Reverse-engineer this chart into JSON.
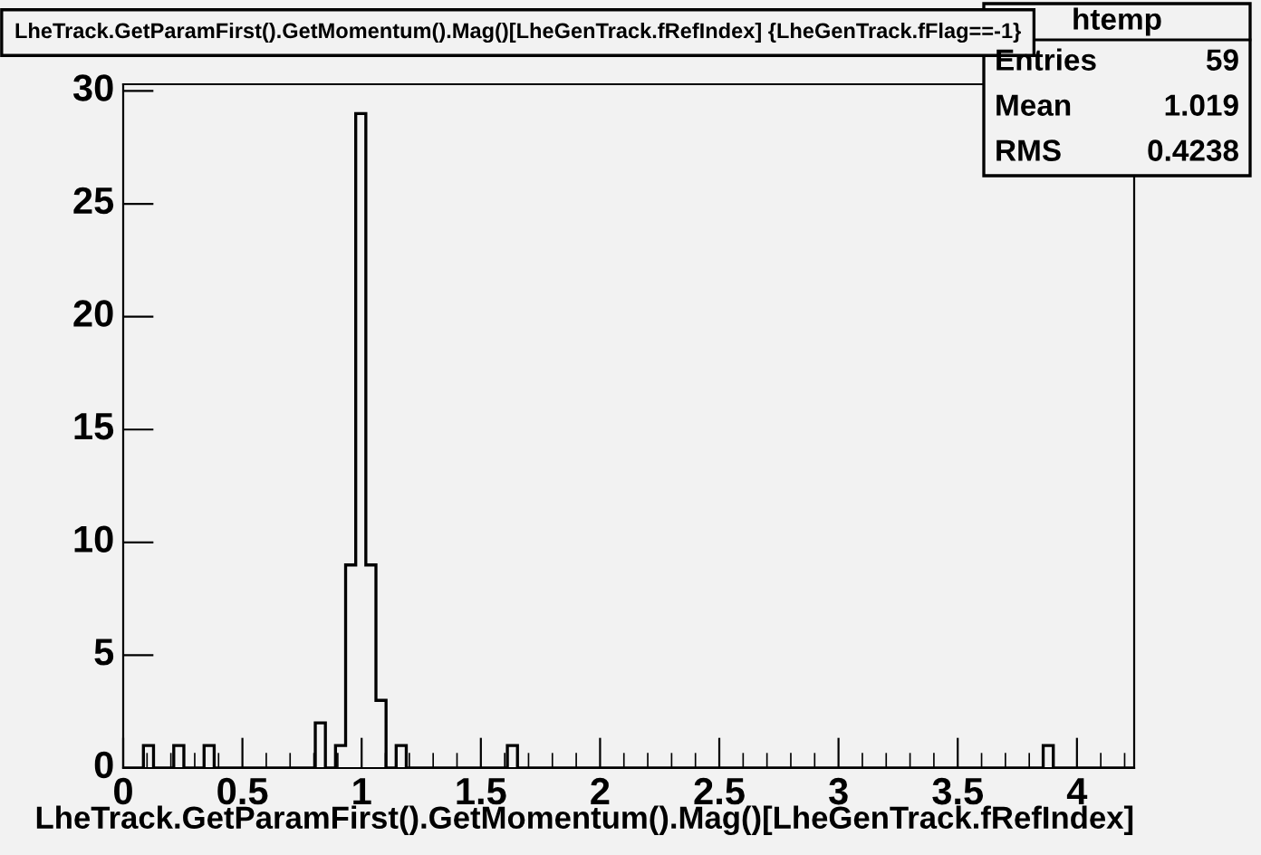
{
  "chart_data": {
    "type": "histogram",
    "title": "LheTrack.GetParamFirst().GetMomentum().Mag()[LheGenTrack.fRefIndex] {LheGenTrack.fFlag==-1}",
    "xlabel": "LheTrack.GetParamFirst().GetMomentum().Mag()[LheGenTrack.fRefIndex]",
    "annotations": [
      "htemp",
      "Entries",
      "59",
      "Mean",
      "1.019",
      "RMS",
      "0.4238"
    ],
    "bins": [
      0,
      0.0424,
      0.0848,
      0.1272,
      0.1696,
      0.212,
      0.2544,
      0.2968,
      0.3392,
      0.3816,
      0.424,
      0.4664,
      0.5088,
      0.5512,
      0.5936,
      0.636,
      0.6784,
      0.7208,
      0.7632,
      0.8056,
      0.848,
      0.8904,
      0.9328,
      0.9752,
      1.0176,
      1.06,
      1.1024,
      1.1448,
      1.1872,
      1.2296,
      1.272,
      1.3144,
      1.3568,
      1.3992,
      1.4416,
      1.484,
      1.5264,
      1.5688,
      1.6112,
      1.6536,
      1.696,
      1.7384,
      1.7808,
      1.8232,
      1.8656,
      1.908,
      1.9504,
      1.9928,
      2.0352,
      2.0776,
      2.12,
      2.1624,
      2.2048,
      2.2472,
      2.2896,
      2.332,
      2.3744,
      2.4168,
      2.4592,
      2.5016,
      2.544,
      2.5864,
      2.6288,
      2.6712,
      2.7136,
      2.756,
      2.7984,
      2.8408,
      2.8832,
      2.9256,
      2.968,
      3.0104,
      3.0528,
      3.0952,
      3.1376,
      3.18,
      3.2224,
      3.2648,
      3.3072,
      3.3496,
      3.392,
      3.4344,
      3.4768,
      3.5192,
      3.5616,
      3.604,
      3.6464,
      3.6888,
      3.7312,
      3.7736,
      3.816,
      3.8584,
      3.9008,
      3.9432,
      3.9856,
      4.028,
      4.0704,
      4.1128,
      4.1552,
      4.1976,
      4.24
    ],
    "values": [
      0,
      0,
      1,
      0,
      0,
      1,
      0,
      0,
      1,
      0,
      0,
      0,
      0,
      0,
      0,
      0,
      0,
      0,
      0,
      2,
      0,
      1,
      9,
      29,
      9,
      3,
      0,
      1,
      0,
      0,
      0,
      0,
      0,
      0,
      0,
      0,
      0,
      0,
      1,
      0,
      0,
      0,
      0,
      0,
      0,
      0,
      0,
      0,
      0,
      0,
      0,
      0,
      0,
      0,
      0,
      0,
      0,
      0,
      0,
      0,
      0,
      0,
      0,
      0,
      0,
      0,
      0,
      0,
      0,
      0,
      0,
      0,
      0,
      0,
      0,
      0,
      0,
      0,
      0,
      0,
      0,
      0,
      0,
      0,
      0,
      0,
      0,
      0,
      0,
      0,
      0,
      1,
      0,
      0,
      0,
      0,
      0,
      0,
      0,
      0
    ],
    "color": "#000000",
    "xlim": [
      0,
      4.24
    ],
    "ylim": [
      0,
      30.3
    ],
    "xticks": [
      0,
      0.5,
      1,
      1.5,
      2,
      2.5,
      3,
      3.5,
      4
    ],
    "yticks": [
      0,
      5,
      10,
      15,
      20,
      25,
      30
    ],
    "grid": false,
    "legend": false
  }
}
